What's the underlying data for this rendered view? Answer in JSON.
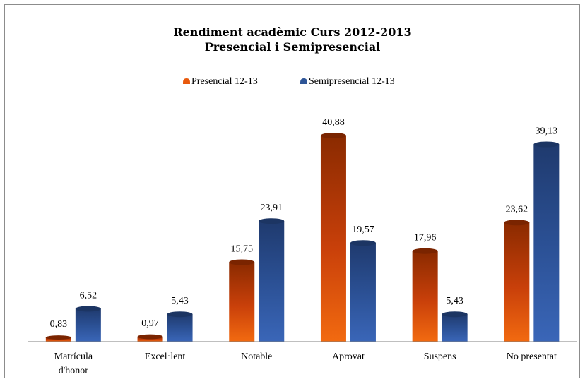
{
  "chart_data": {
    "type": "bar",
    "title": "Rendiment acadèmic  Curs 2012-2013",
    "subtitle": "Presencial i Semipresencial",
    "categories": [
      "Matrícula d'honor",
      "Excel·lent",
      "Notable",
      "Aprovat",
      "Suspens",
      "No presentat"
    ],
    "category_lines": [
      [
        "Matrícula",
        "d'honor"
      ],
      [
        "Excel·lent"
      ],
      [
        "Notable"
      ],
      [
        "Aprovat"
      ],
      [
        "Suspens"
      ],
      [
        "No presentat"
      ]
    ],
    "series": [
      {
        "name": "Presencial 12-13",
        "color": "#e8590c",
        "values": [
          0.83,
          0.97,
          15.75,
          40.88,
          17.96,
          23.62
        ],
        "labels": [
          "0,83",
          "0,97",
          "15,75",
          "40,88",
          "17,96",
          "23,62"
        ]
      },
      {
        "name": "Semipresencial 12-13",
        "color": "#2e5597",
        "values": [
          6.52,
          5.43,
          23.91,
          19.57,
          5.43,
          39.13
        ],
        "labels": [
          "6,52",
          "5,43",
          "23,91",
          "19,57",
          "5,43",
          "39,13"
        ]
      }
    ],
    "ylim": [
      0,
      42
    ],
    "grid": false,
    "legend_position": "top"
  }
}
